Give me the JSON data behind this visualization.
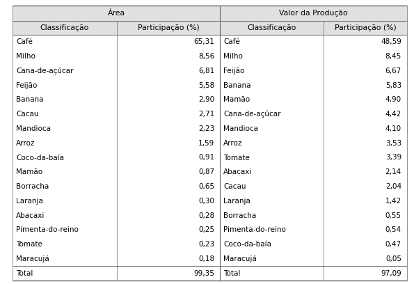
{
  "title_area": "Área",
  "title_valor": "Valor da Produção",
  "col_headers": [
    "Classificação",
    "Participação (%)",
    "Classificação",
    "Participação (%)"
  ],
  "area_rows": [
    [
      "Café",
      "65,31"
    ],
    [
      "Milho",
      "8,56"
    ],
    [
      "Cana-de-açúcar",
      "6,81"
    ],
    [
      "Feijão",
      "5,58"
    ],
    [
      "Banana",
      "2,90"
    ],
    [
      "Cacau",
      "2,71"
    ],
    [
      "Mandioca",
      "2,23"
    ],
    [
      "Arroz",
      "1,59"
    ],
    [
      "Coco-da-baía",
      "0,91"
    ],
    [
      "Mamão",
      "0,87"
    ],
    [
      "Borracha",
      "0,65"
    ],
    [
      "Laranja",
      "0,30"
    ],
    [
      "Abacaxi",
      "0,28"
    ],
    [
      "Pimenta-do-reino",
      "0,25"
    ],
    [
      "Tomate",
      "0,23"
    ],
    [
      "Maracujá",
      "0,18"
    ],
    [
      "Total",
      "99,35"
    ]
  ],
  "valor_rows": [
    [
      "Café",
      "48,59"
    ],
    [
      "Milho",
      "8,45"
    ],
    [
      "Feijão",
      "6,67"
    ],
    [
      "Banana",
      "5,83"
    ],
    [
      "Mamão",
      "4,90"
    ],
    [
      "Cana-de-açúcar",
      "4,42"
    ],
    [
      "Mandioca",
      "4,10"
    ],
    [
      "Arroz",
      "3,53"
    ],
    [
      "Tomate",
      "3,39"
    ],
    [
      "Abacaxi",
      "2,14"
    ],
    [
      "Cacau",
      "2,04"
    ],
    [
      "Laranja",
      "1,42"
    ],
    [
      "Borracha",
      "0,55"
    ],
    [
      "Pimenta-do-reino",
      "0,54"
    ],
    [
      "Coco-da-baía",
      "0,47"
    ],
    [
      "Maracujá",
      "0,05"
    ],
    [
      "Total",
      "97,09"
    ]
  ],
  "bg_header": "#e0e0e0",
  "line_color": "#666666",
  "font_size": 7.5,
  "header_font_size": 7.8
}
